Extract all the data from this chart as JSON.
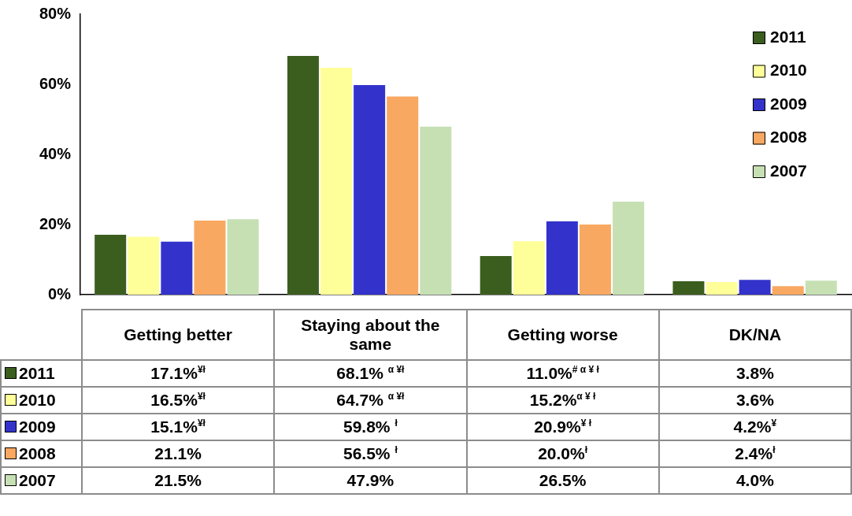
{
  "chart_data": {
    "type": "bar",
    "categories": [
      "Getting better",
      "Staying about the same",
      "Getting worse",
      "DK/NA"
    ],
    "series": [
      {
        "name": "2011",
        "color": "#3b5e1f",
        "values": [
          17.1,
          68.1,
          11.0,
          3.8
        ],
        "value_labels": [
          "17.1%$^{¥ł}$",
          "68.1% $^{α ¥ł}$",
          "11.0%$^{# α ¥ ł}$",
          "3.8%"
        ]
      },
      {
        "name": "2010",
        "color": "#ffff99",
        "values": [
          16.5,
          64.7,
          15.2,
          3.6
        ],
        "value_labels": [
          "16.5%$^{¥ł}$",
          "64.7% $^{α ¥ł}$",
          "15.2%$^{α ¥ ł}$",
          "3.6%"
        ]
      },
      {
        "name": "2009",
        "color": "#3333cc",
        "values": [
          15.1,
          59.8,
          20.9,
          4.2
        ],
        "value_labels": [
          "15.1%$^{¥ł}$",
          "59.8% $^{ł}$",
          "20.9%$^{¥ ł}$",
          "4.2%$^{¥}$"
        ]
      },
      {
        "name": "2008",
        "color": "#f9a862",
        "values": [
          21.1,
          56.5,
          20.0,
          2.4
        ],
        "value_labels": [
          "21.1%",
          "56.5% $^{ł}$",
          "20.0%$^{ł}$",
          "2.4%$^{ł}$"
        ]
      },
      {
        "name": "2007",
        "color": "#c6e0b4",
        "values": [
          21.5,
          47.9,
          26.5,
          4.0
        ],
        "value_labels": [
          "21.5%",
          "47.9%",
          "26.5%",
          "4.0%"
        ]
      }
    ],
    "ylim": [
      0,
      80
    ],
    "yticks": [
      {
        "value": 0,
        "label": "0%"
      },
      {
        "value": 20,
        "label": "20%"
      },
      {
        "value": 40,
        "label": "40%"
      },
      {
        "value": 60,
        "label": "60%"
      },
      {
        "value": 80,
        "label": "80%"
      }
    ],
    "grid": false,
    "legend": "top right"
  }
}
